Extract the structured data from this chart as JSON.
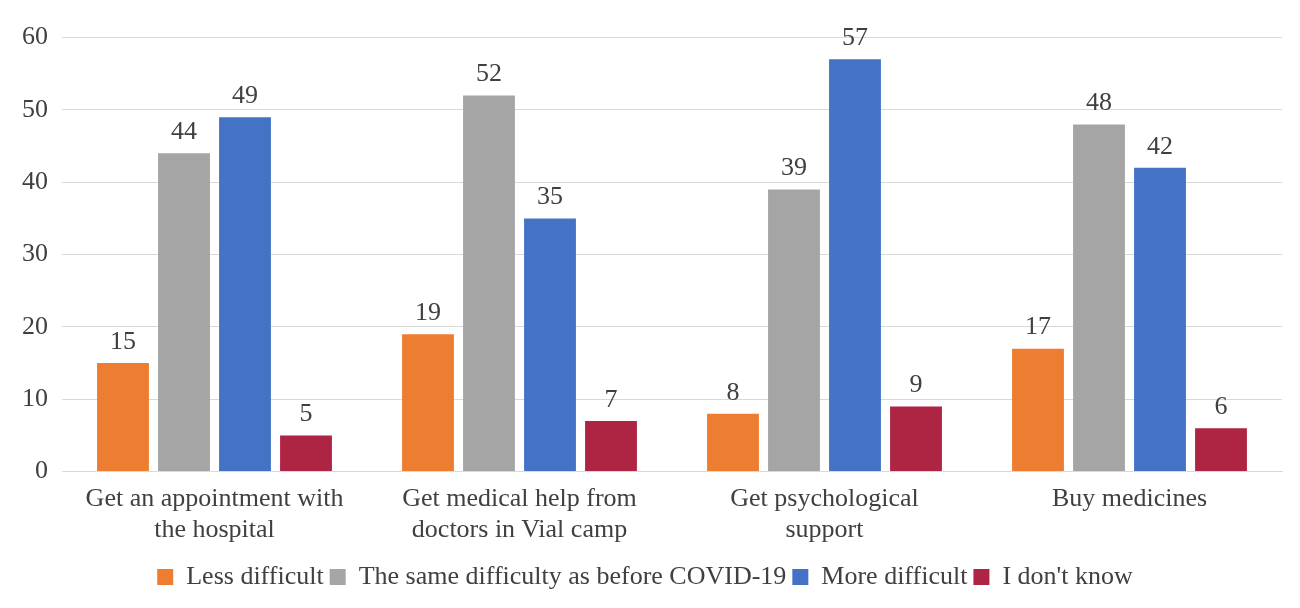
{
  "chart_data": {
    "type": "bar",
    "categories": [
      "Get an appointment with the hospital",
      "Get medical help from doctors in Vial camp",
      "Get psychological support",
      "Buy medicines"
    ],
    "series": [
      {
        "name": "Less difficult",
        "color": "#ed7d31",
        "values": [
          15,
          19,
          8,
          17
        ]
      },
      {
        "name": "The same difficulty as before COVID-19",
        "color": "#a5a5a5",
        "values": [
          44,
          52,
          39,
          48
        ]
      },
      {
        "name": "More difficult",
        "color": "#4472c4",
        "values": [
          49,
          35,
          57,
          42
        ]
      },
      {
        "name": "I don't know",
        "color": "#ae2443",
        "values": [
          5,
          7,
          9,
          6
        ]
      }
    ],
    "ylim": [
      0,
      60
    ],
    "yticks": [
      0,
      10,
      20,
      30,
      40,
      50,
      60
    ],
    "grid": "y",
    "legend": "bottom",
    "data_labels": true
  }
}
